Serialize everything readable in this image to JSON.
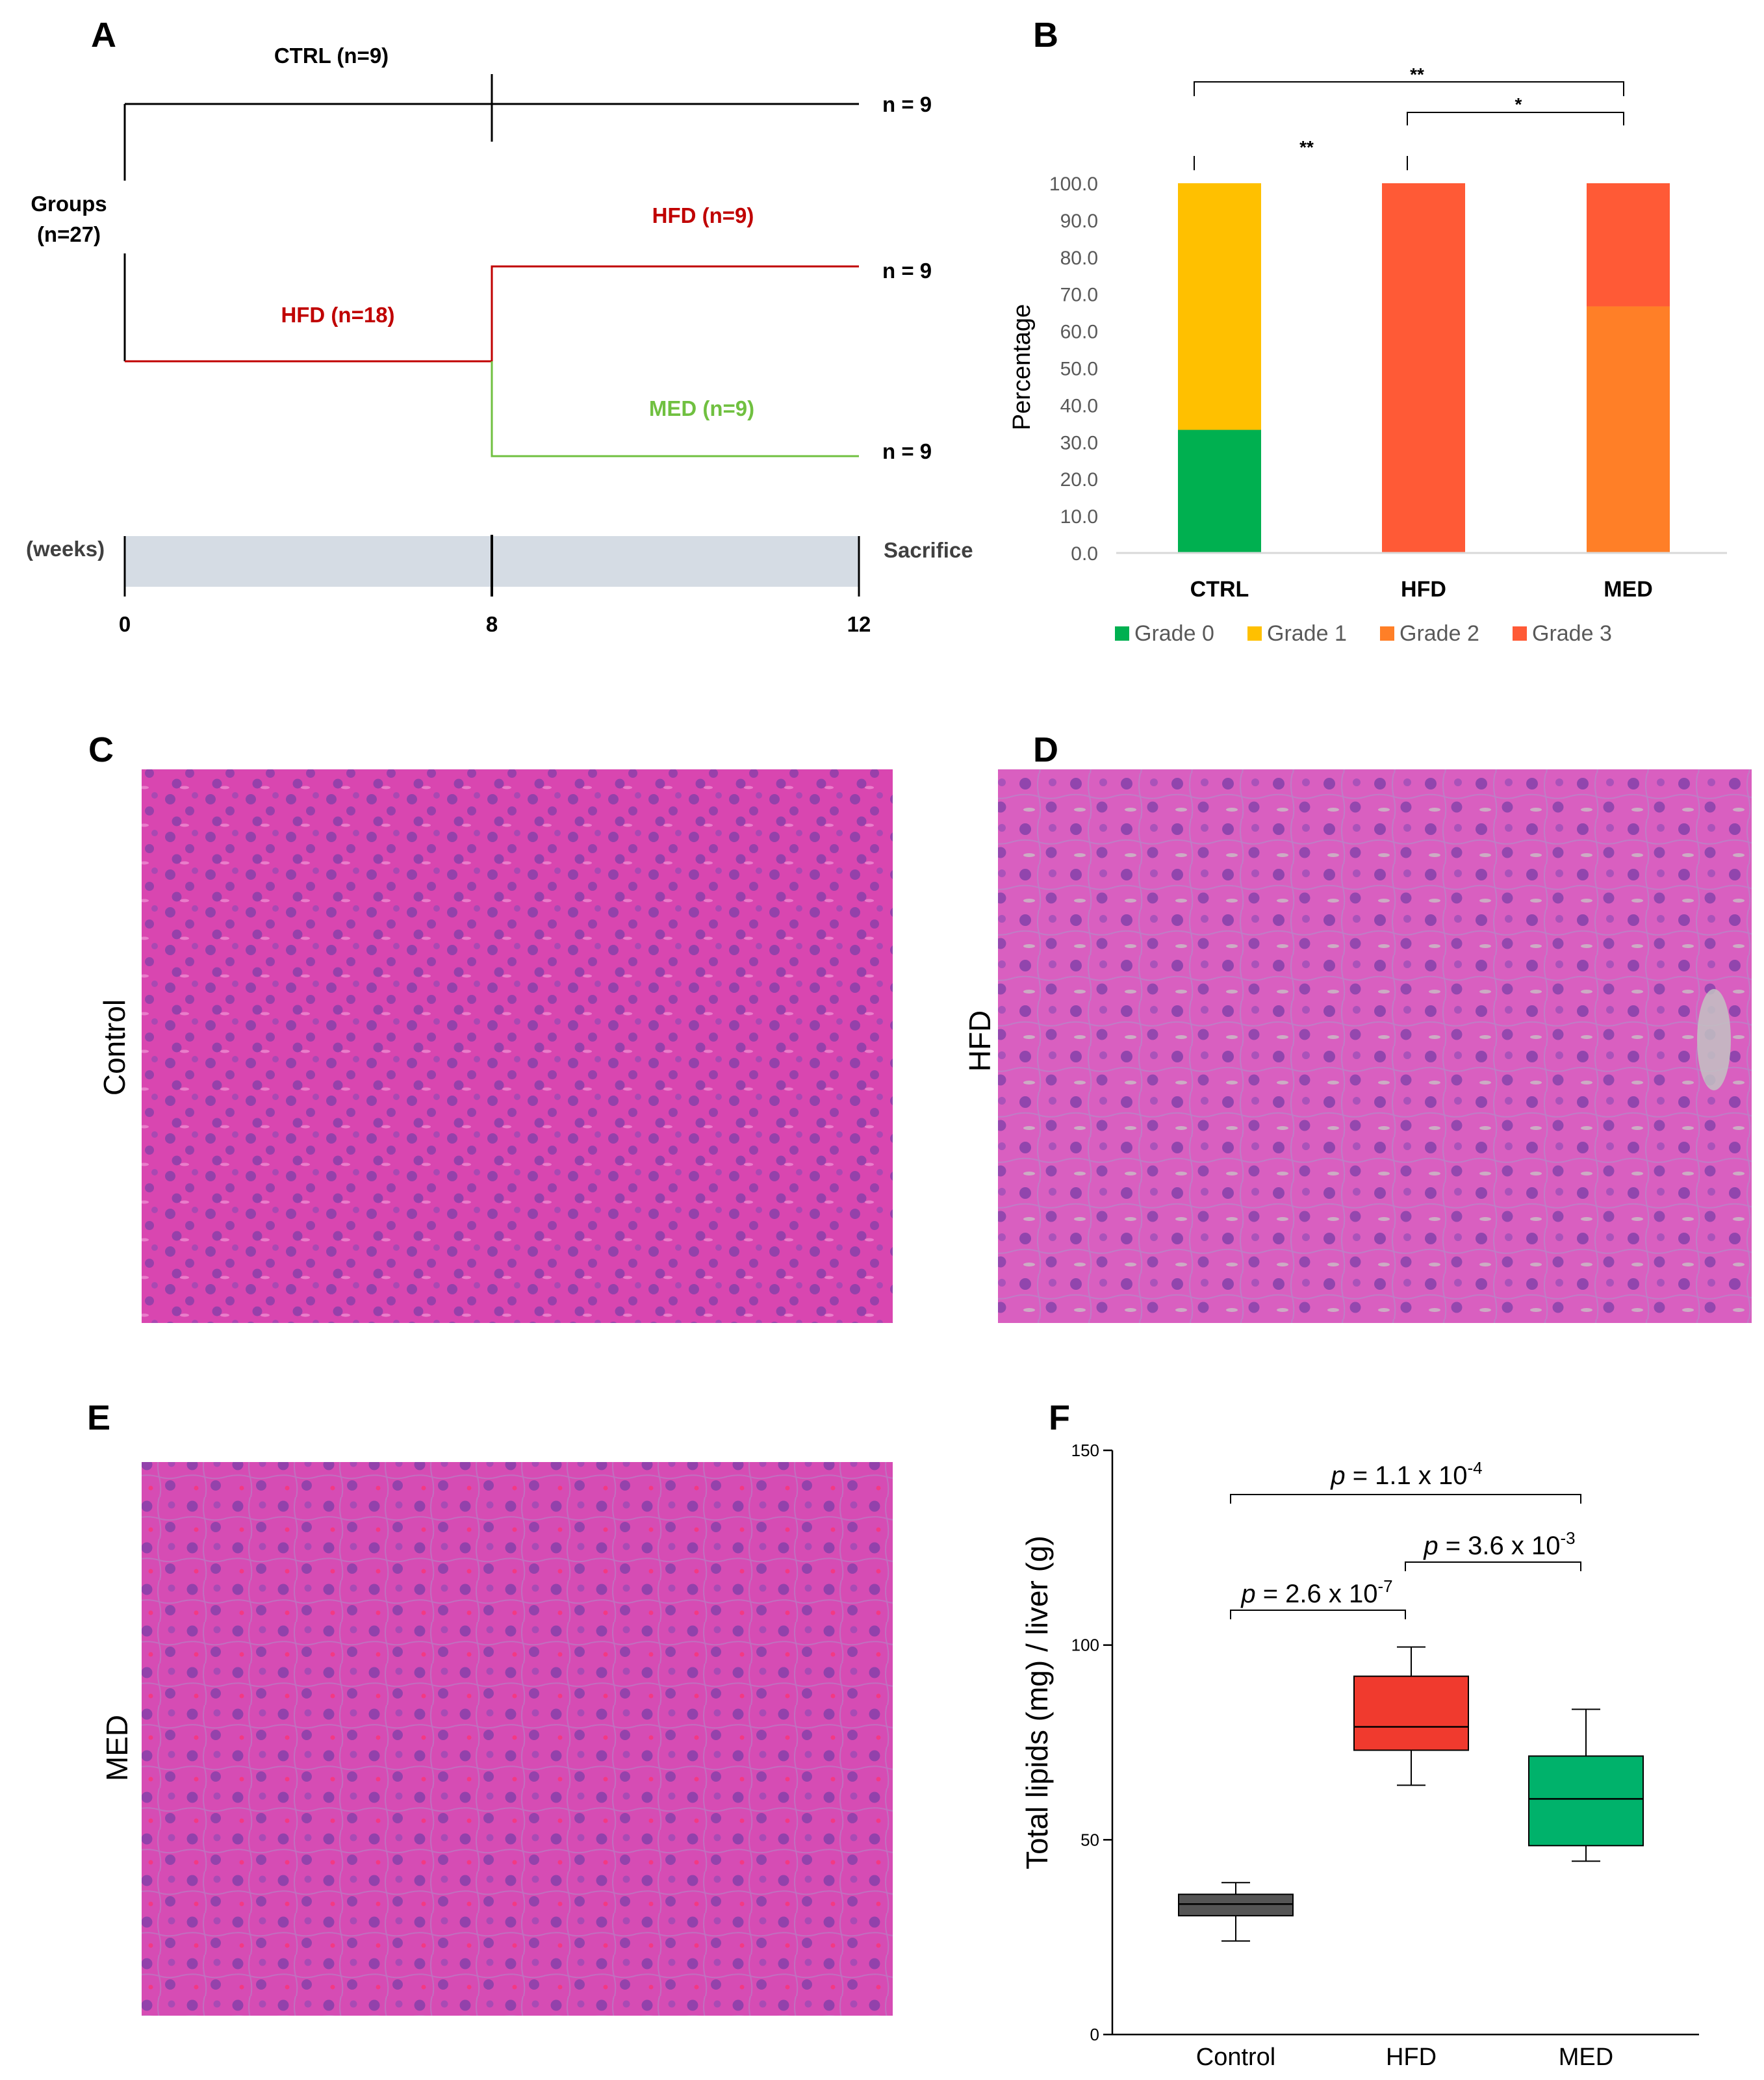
{
  "panels": {
    "A": "A",
    "B": "B",
    "C": "C",
    "D": "D",
    "E": "E",
    "F": "F"
  },
  "colors": {
    "ctrl": "#000000",
    "hfd": "#c00000",
    "med": "#70c040",
    "timeline_bar": "#d5dce4",
    "text_dark": "#404040",
    "grade0": "#00b050",
    "grade1": "#ffc000",
    "grade2": "#ff7f27",
    "grade3": "#ff5a36",
    "box_control": "#555555",
    "box_hfd": "#f03a2e",
    "box_med": "#00b26b",
    "tissue_control": "#d946b0",
    "tissue_hfd": "#d95fc0",
    "tissue_med": "#d64cb4",
    "nucleus": "#7d3ea8"
  },
  "diagram": {
    "groups_label_line1": "Groups",
    "groups_label_line2": "(n=27)",
    "ctrl_label": "CTRL (n=9)",
    "hfd_initial_label": "HFD (n=18)",
    "hfd_label": "HFD (n=9)",
    "med_label": "MED (n=9)",
    "n_ctrl": "n = 9",
    "n_hfd": "n = 9",
    "n_med": "n = 9",
    "weeks_label": "(weeks)",
    "sacrifice_label": "Sacrifice",
    "week_ticks": [
      "0",
      "8",
      "12"
    ]
  },
  "chart_data": [
    {
      "id": "B",
      "type": "bar",
      "stacked": true,
      "categories": [
        "CTRL",
        "HFD",
        "MED"
      ],
      "series": [
        {
          "name": "Grade 0",
          "values": [
            33.3,
            0,
            0
          ]
        },
        {
          "name": "Grade 1",
          "values": [
            66.7,
            0,
            0
          ]
        },
        {
          "name": "Grade 2",
          "values": [
            0,
            0,
            66.7
          ]
        },
        {
          "name": "Grade 3",
          "values": [
            0,
            100,
            33.3
          ]
        }
      ],
      "ylabel": "Percentage",
      "ylim": [
        0,
        100
      ],
      "yticks": [
        "0.0",
        "10.0",
        "20.0",
        "30.0",
        "40.0",
        "50.0",
        "60.0",
        "70.0",
        "80.0",
        "90.0",
        "100.0"
      ],
      "legend": [
        "Grade 0",
        "Grade 1",
        "Grade 2",
        "Grade 3"
      ],
      "legend_position": "bottom",
      "significance": [
        {
          "label": "**",
          "between": [
            "CTRL",
            "HFD"
          ]
        },
        {
          "label": "**",
          "between": [
            "CTRL",
            "MED"
          ]
        },
        {
          "label": "*",
          "between": [
            "HFD",
            "MED"
          ]
        }
      ]
    },
    {
      "id": "F",
      "type": "box",
      "categories": [
        "Control",
        "HFD",
        "MED"
      ],
      "ylabel": "Total lipids (mg) / liver (g)",
      "ylim": [
        0,
        150
      ],
      "yticks": [
        "0",
        "50",
        "100",
        "150"
      ],
      "boxes": [
        {
          "name": "Control",
          "min": 24,
          "q1": 30.5,
          "median": 33.5,
          "q3": 36,
          "max": 39
        },
        {
          "name": "HFD",
          "min": 64,
          "q1": 73,
          "median": 79,
          "q3": 92,
          "max": 99.5
        },
        {
          "name": "MED",
          "min": 44.5,
          "q1": 48.5,
          "median": 60.5,
          "q3": 71.5,
          "max": 83.5
        }
      ],
      "comparisons": [
        {
          "between": [
            "Control",
            "HFD"
          ],
          "p_prefix": "p",
          "p_text": " = 2.6 x 10",
          "p_exp": "-7"
        },
        {
          "between": [
            "HFD",
            "MED"
          ],
          "p_prefix": "p",
          "p_text": " = 3.6 x 10",
          "p_exp": "-3"
        },
        {
          "between": [
            "Control",
            "MED"
          ],
          "p_prefix": "p",
          "p_text": " = 1.1 x 10",
          "p_exp": "-4"
        }
      ]
    }
  ],
  "micrographs": {
    "C": "Control",
    "D": "HFD",
    "E": "MED"
  }
}
